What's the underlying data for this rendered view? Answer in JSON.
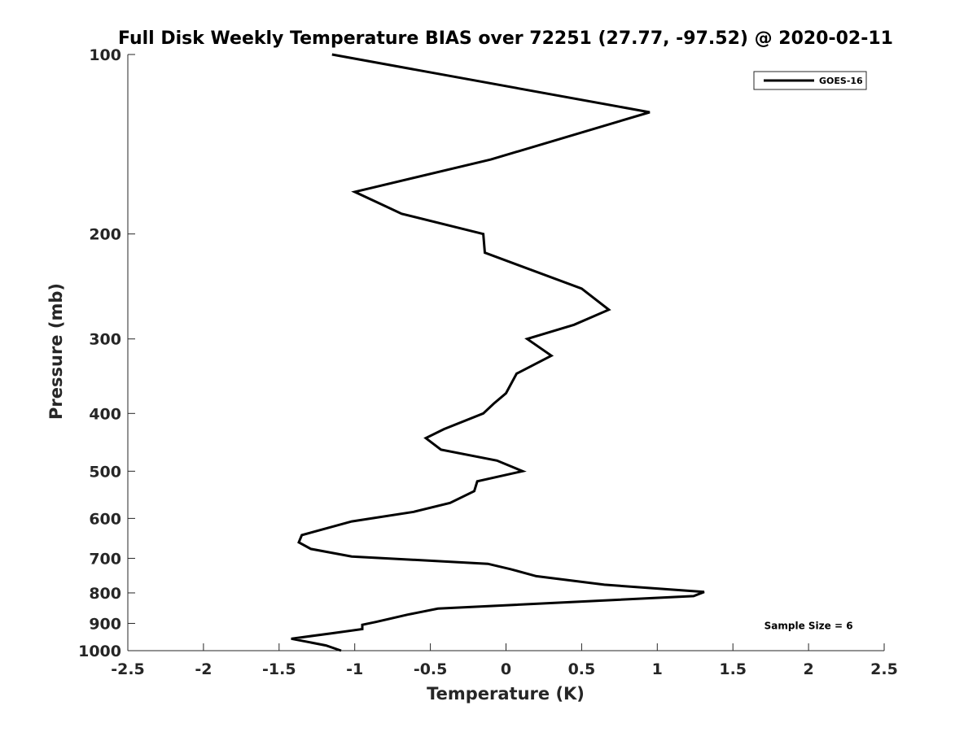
{
  "chart_data": {
    "type": "line",
    "title": "Full Disk Weekly Temperature BIAS over 72251 (27.77, -97.52) @ 2020-02-11",
    "xlabel": "Temperature (K)",
    "ylabel": "Pressure (mb)",
    "xlim": [
      -2.5,
      2.5
    ],
    "ylim": [
      100,
      1000
    ],
    "y_scale": "log",
    "y_reversed": true,
    "grid": false,
    "legend_position": "top-right",
    "x_ticks": [
      -2.5,
      -2,
      -1.5,
      -1,
      -0.5,
      0,
      0.5,
      1,
      1.5,
      2,
      2.5
    ],
    "x_tick_labels": [
      "-2.5",
      "-2",
      "-1.5",
      "-1",
      "-0.5",
      "0",
      "0.5",
      "1",
      "1.5",
      "2",
      "2.5"
    ],
    "y_ticks": [
      100,
      200,
      300,
      400,
      500,
      600,
      700,
      800,
      900,
      1000
    ],
    "y_tick_labels": [
      "100",
      "200",
      "300",
      "400",
      "500",
      "600",
      "700",
      "800",
      "900",
      "1000"
    ],
    "series": [
      {
        "name": "GOES-16",
        "color": "#000000",
        "x": [
          -1.15,
          0.95,
          -0.1,
          -1.0,
          -0.69,
          -0.15,
          -0.14,
          0.5,
          0.68,
          0.45,
          0.14,
          0.3,
          0.07,
          0.0,
          -0.08,
          -0.15,
          -0.41,
          -0.53,
          -0.43,
          -0.06,
          0.11,
          -0.19,
          -0.21,
          -0.37,
          -0.61,
          -1.02,
          -1.35,
          -1.37,
          -1.29,
          -1.02,
          -0.12,
          0.03,
          0.2,
          0.65,
          1.31,
          1.24,
          -0.45,
          -0.65,
          -0.86,
          -0.95,
          -0.95,
          -1.15,
          -1.42,
          -1.19,
          -1.09
        ],
        "y": [
          100,
          125,
          150,
          170,
          185,
          200,
          215,
          247,
          268,
          284,
          300,
          320,
          343,
          370,
          385,
          400,
          425,
          440,
          460,
          480,
          500,
          520,
          540,
          565,
          585,
          607,
          640,
          658,
          675,
          695,
          715,
          730,
          750,
          775,
          797,
          810,
          850,
          870,
          895,
          905,
          920,
          935,
          955,
          980,
          1000
        ]
      }
    ],
    "annotations": [
      {
        "text": "Sample Size = 6",
        "x": 2.0,
        "y": 920
      }
    ]
  }
}
